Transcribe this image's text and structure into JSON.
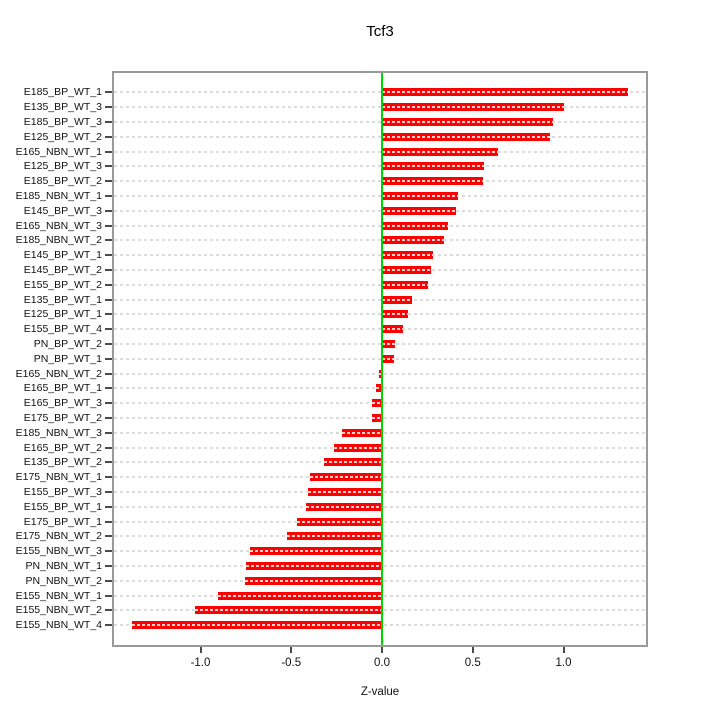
{
  "title": "Tcf3",
  "xlabel": "Z-value",
  "chart_data": {
    "type": "bar",
    "orientation": "horizontal",
    "title": "Tcf3",
    "xlabel": "Z-value",
    "ylabel": "",
    "grid": true,
    "xlim": [
      -1.49,
      1.47
    ],
    "x_ticks": [
      -1.0,
      -0.5,
      0.0,
      0.5,
      1.0
    ],
    "zero_line": 0.0,
    "categories": [
      "E185_BP_WT_1",
      "E135_BP_WT_3",
      "E185_BP_WT_3",
      "E125_BP_WT_2",
      "E165_NBN_WT_1",
      "E125_BP_WT_3",
      "E185_BP_WT_2",
      "E185_NBN_WT_1",
      "E145_BP_WT_3",
      "E165_NBN_WT_3",
      "E185_NBN_WT_2",
      "E145_BP_WT_1",
      "E145_BP_WT_2",
      "E155_BP_WT_2",
      "E135_BP_WT_1",
      "E125_BP_WT_1",
      "E155_BP_WT_4",
      "PN_BP_WT_2",
      "PN_BP_WT_1",
      "E165_NBN_WT_2",
      "E165_BP_WT_1",
      "E165_BP_WT_3",
      "E175_BP_WT_2",
      "E185_NBN_WT_3",
      "E165_BP_WT_2",
      "E135_BP_WT_2",
      "E175_NBN_WT_1",
      "E155_BP_WT_3",
      "E155_BP_WT_1",
      "E175_BP_WT_1",
      "E175_NBN_WT_2",
      "E155_NBN_WT_3",
      "PN_NBN_WT_1",
      "PN_NBN_WT_2",
      "E155_NBN_WT_1",
      "E155_NBN_WT_2",
      "E155_NBN_WT_4"
    ],
    "values": [
      1.355,
      1.005,
      0.94,
      0.925,
      0.64,
      0.56,
      0.555,
      0.42,
      0.41,
      0.365,
      0.34,
      0.28,
      0.27,
      0.255,
      0.165,
      0.145,
      0.115,
      0.07,
      0.065,
      -0.015,
      -0.035,
      -0.055,
      -0.057,
      -0.22,
      -0.265,
      -0.32,
      -0.395,
      -0.405,
      -0.42,
      -0.47,
      -0.525,
      -0.73,
      -0.75,
      -0.755,
      -0.905,
      -1.03,
      -1.375
    ],
    "colors": {
      "bar": "#ff0000",
      "bar_dash": "#ffffff",
      "zero_line": "#00d400",
      "gridline": "#dcdcdc",
      "box_border": "#9a9a9a",
      "tick": "#4a4a4a",
      "text": "#000000"
    }
  }
}
